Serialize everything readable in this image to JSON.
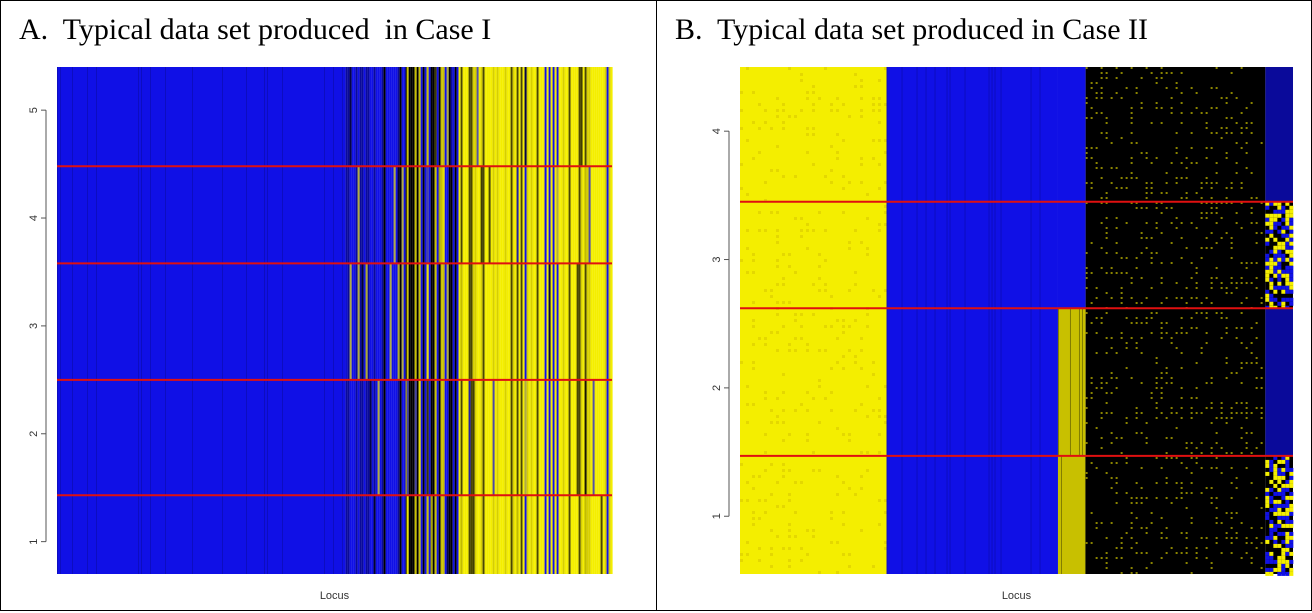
{
  "colors": {
    "blue": "#1010e6",
    "dark_blue": "#0a0a9a",
    "yellow": "#f4ee00",
    "black": "#000000",
    "separator": "#e01010"
  },
  "chart_data": [
    {
      "id": "A",
      "type": "heatmap",
      "title": "A.  Typical data set produced  in Case I",
      "xlabel": "Locus",
      "ylabel": "",
      "ylim": [
        0.7,
        5.4
      ],
      "yticks": [
        1,
        2,
        3,
        4,
        5
      ],
      "separators_y": [
        1.43,
        2.5,
        3.58,
        4.48
      ],
      "grid": false,
      "legend": "none",
      "x_segments": [
        {
          "x0": 0.0,
          "x1": 0.52,
          "pattern": "blue"
        },
        {
          "x0": 0.52,
          "x1": 0.63,
          "pattern": "blue-streaky"
        },
        {
          "x0": 0.63,
          "x1": 0.72,
          "pattern": "mixed"
        },
        {
          "x0": 0.72,
          "x1": 1.0,
          "pattern": "yellow-streaky"
        }
      ],
      "y_band_notes": [
        "rows split into groups by red separators"
      ]
    },
    {
      "id": "B",
      "type": "heatmap",
      "title": "B.  Typical data set produced in Case II",
      "xlabel": "Locus",
      "ylabel": "",
      "ylim": [
        0.55,
        4.5
      ],
      "yticks": [
        1,
        2,
        3,
        4
      ],
      "separators_y": [
        1.47,
        2.62,
        3.45
      ],
      "grid": false,
      "legend": "none",
      "x_segments": [
        {
          "x0": 0.0,
          "x1": 0.265,
          "pattern": "yellow"
        },
        {
          "x0": 0.265,
          "x1": 0.575,
          "pattern": "blue"
        },
        {
          "x0": 0.575,
          "x1": 0.625,
          "pattern": "groupwise-blue-yellow"
        },
        {
          "x0": 0.625,
          "x1": 0.95,
          "pattern": "black-speckled"
        },
        {
          "x0": 0.95,
          "x1": 1.0,
          "pattern": "groupwise-darkblue-mixed"
        }
      ]
    }
  ]
}
